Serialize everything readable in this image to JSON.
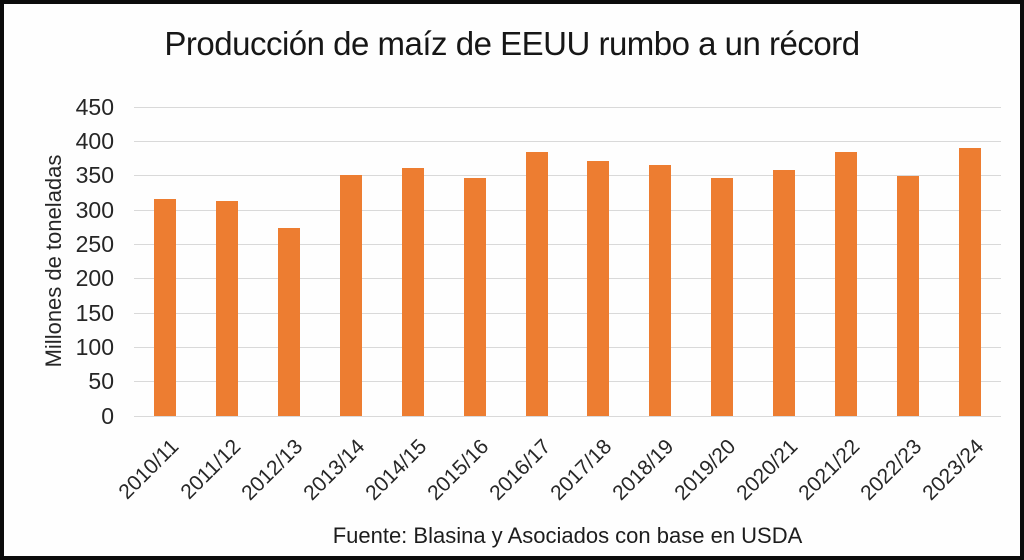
{
  "chart_data": {
    "type": "bar",
    "title": "Producción de maíz de EEUU rumbo a un récord",
    "ylabel": "Millones de toneladas",
    "xlabel": "",
    "source": "Fuente: Blasina y Asociados con base en USDA",
    "categories": [
      "2010/11",
      "2011/12",
      "2012/13",
      "2013/14",
      "2014/15",
      "2015/16",
      "2016/17",
      "2017/18",
      "2018/19",
      "2019/20",
      "2020/21",
      "2021/22",
      "2022/23",
      "2023/24"
    ],
    "values": [
      316,
      313,
      274,
      351,
      361,
      346,
      385,
      372,
      365,
      346,
      359,
      384,
      349,
      390
    ],
    "ylim": [
      0,
      450
    ],
    "ytick_step": 50,
    "grid": true,
    "legend": "none",
    "bar_color": "#ed7d31",
    "gridline_color": "#d9d9d9",
    "text_color": "#262626",
    "frame_border_color": "#0b0b0b"
  }
}
